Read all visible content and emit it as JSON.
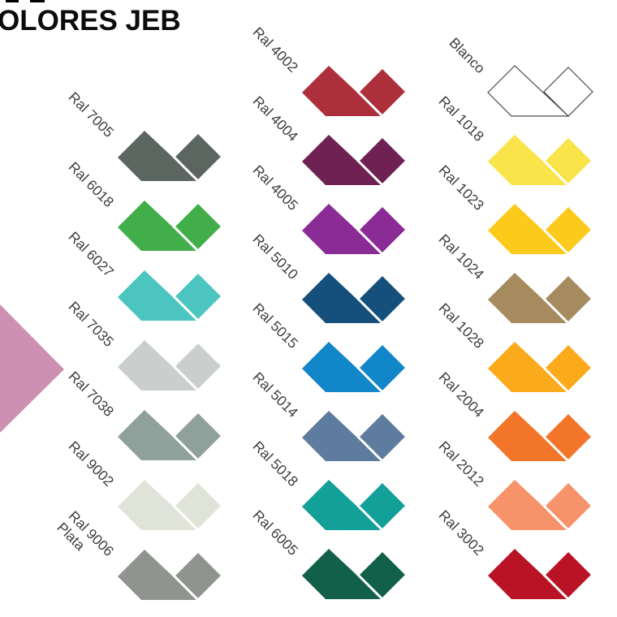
{
  "title": "OLORES JEB",
  "decor": {
    "pink_triangle_color": "#cd90b3",
    "crop_marks_color": "#000000"
  },
  "styles": {
    "label_color": "#3e3e3e",
    "outline_color": "#4a4a4a",
    "background": "#ffffff"
  },
  "columns": [
    {
      "name": "left",
      "items": [
        {
          "label": "Ral 7005",
          "color": "#5c6661"
        },
        {
          "label": "Ral 6018",
          "color": "#42ae49"
        },
        {
          "label": "Ral 6027",
          "color": "#4cc5c0"
        },
        {
          "label": "Ral 7035",
          "color": "#cacfce"
        },
        {
          "label": "Ral 7038",
          "color": "#90a19c"
        },
        {
          "label": "Ral 9002",
          "color": "#dfe3d8"
        },
        {
          "label": "Ral 9006",
          "label2": "Plata",
          "color": "#90948f"
        }
      ]
    },
    {
      "name": "middle",
      "items": [
        {
          "label": "Ral 4002",
          "color": "#ae2f3c"
        },
        {
          "label": "Ral 4004",
          "color": "#6f2153"
        },
        {
          "label": "Ral 4005",
          "color": "#8b2b96"
        },
        {
          "label": "Ral 5010",
          "color": "#15507c"
        },
        {
          "label": "Ral 5015",
          "color": "#1186c8"
        },
        {
          "label": "Ral 5014",
          "color": "#5e7c9d"
        },
        {
          "label": "Ral 5018",
          "color": "#12a098"
        },
        {
          "label": "Ral 6005",
          "color": "#126049"
        }
      ]
    },
    {
      "name": "right",
      "items": [
        {
          "label": "Blanco",
          "color": "#ffffff",
          "outline": true
        },
        {
          "label": "Ral 1018",
          "color": "#f9e44a"
        },
        {
          "label": "Ral 1023",
          "color": "#fcca1a"
        },
        {
          "label": "Ral 1024",
          "color": "#a68b5f"
        },
        {
          "label": "Ral 1028",
          "color": "#fbaa1c"
        },
        {
          "label": "Ral 2004",
          "color": "#f3752a"
        },
        {
          "label": "Ral 2012",
          "color": "#f7936a"
        },
        {
          "label": "Ral 3002",
          "color": "#b91325"
        }
      ]
    }
  ]
}
